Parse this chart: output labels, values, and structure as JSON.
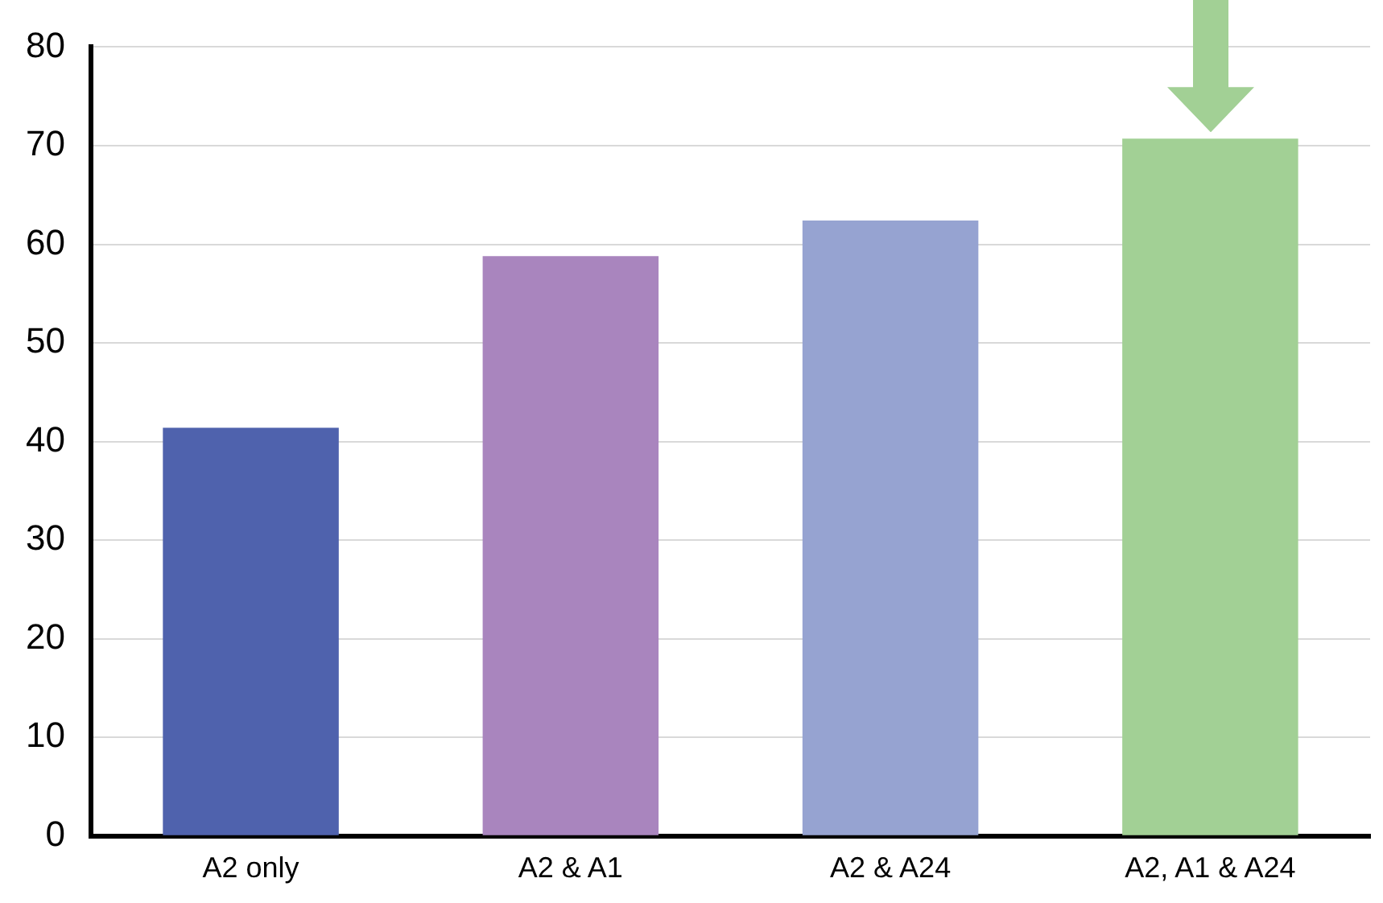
{
  "chart_data": {
    "type": "bar",
    "categories": [
      "A2 only",
      "A2 & A1",
      "A2 & A24",
      "A2, A1 & A24"
    ],
    "values": [
      41.4,
      58.8,
      62.4,
      70.7
    ],
    "colors": [
      "#4f62ad",
      "#a985be",
      "#96a3d1",
      "#a2d095"
    ],
    "ylim": [
      0,
      80
    ],
    "yticks": [
      0,
      10,
      20,
      30,
      40,
      50,
      60,
      70,
      80
    ],
    "grid": "y"
  }
}
